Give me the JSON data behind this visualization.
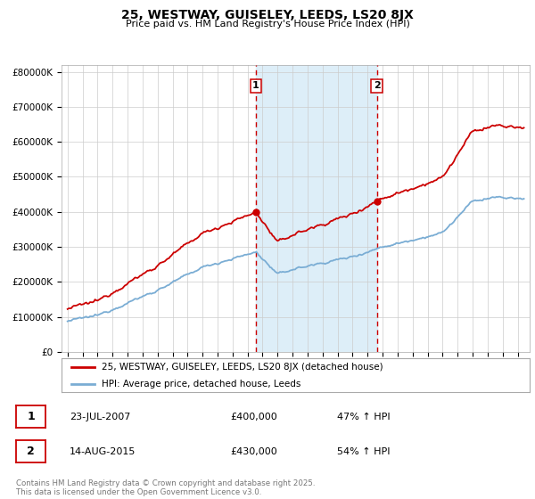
{
  "title1": "25, WESTWAY, GUISELEY, LEEDS, LS20 8JX",
  "title2": "Price paid vs. HM Land Registry's House Price Index (HPI)",
  "legend_line1": "25, WESTWAY, GUISELEY, LEEDS, LS20 8JX (detached house)",
  "legend_line2": "HPI: Average price, detached house, Leeds",
  "transaction1_date": "23-JUL-2007",
  "transaction1_price": "£400,000",
  "transaction1_hpi": "47% ↑ HPI",
  "transaction1_year": 2007.55,
  "transaction1_value": 400000,
  "transaction2_date": "14-AUG-2015",
  "transaction2_price": "£430,000",
  "transaction2_hpi": "54% ↑ HPI",
  "transaction2_year": 2015.62,
  "transaction2_value": 430000,
  "red_color": "#cc0000",
  "blue_color": "#7aadd4",
  "shaded_color": "#ddeef8",
  "grid_color": "#cccccc",
  "background_color": "#ffffff",
  "ylim_min": 0,
  "ylim_max": 820000,
  "footer": "Contains HM Land Registry data © Crown copyright and database right 2025.\nThis data is licensed under the Open Government Licence v3.0."
}
